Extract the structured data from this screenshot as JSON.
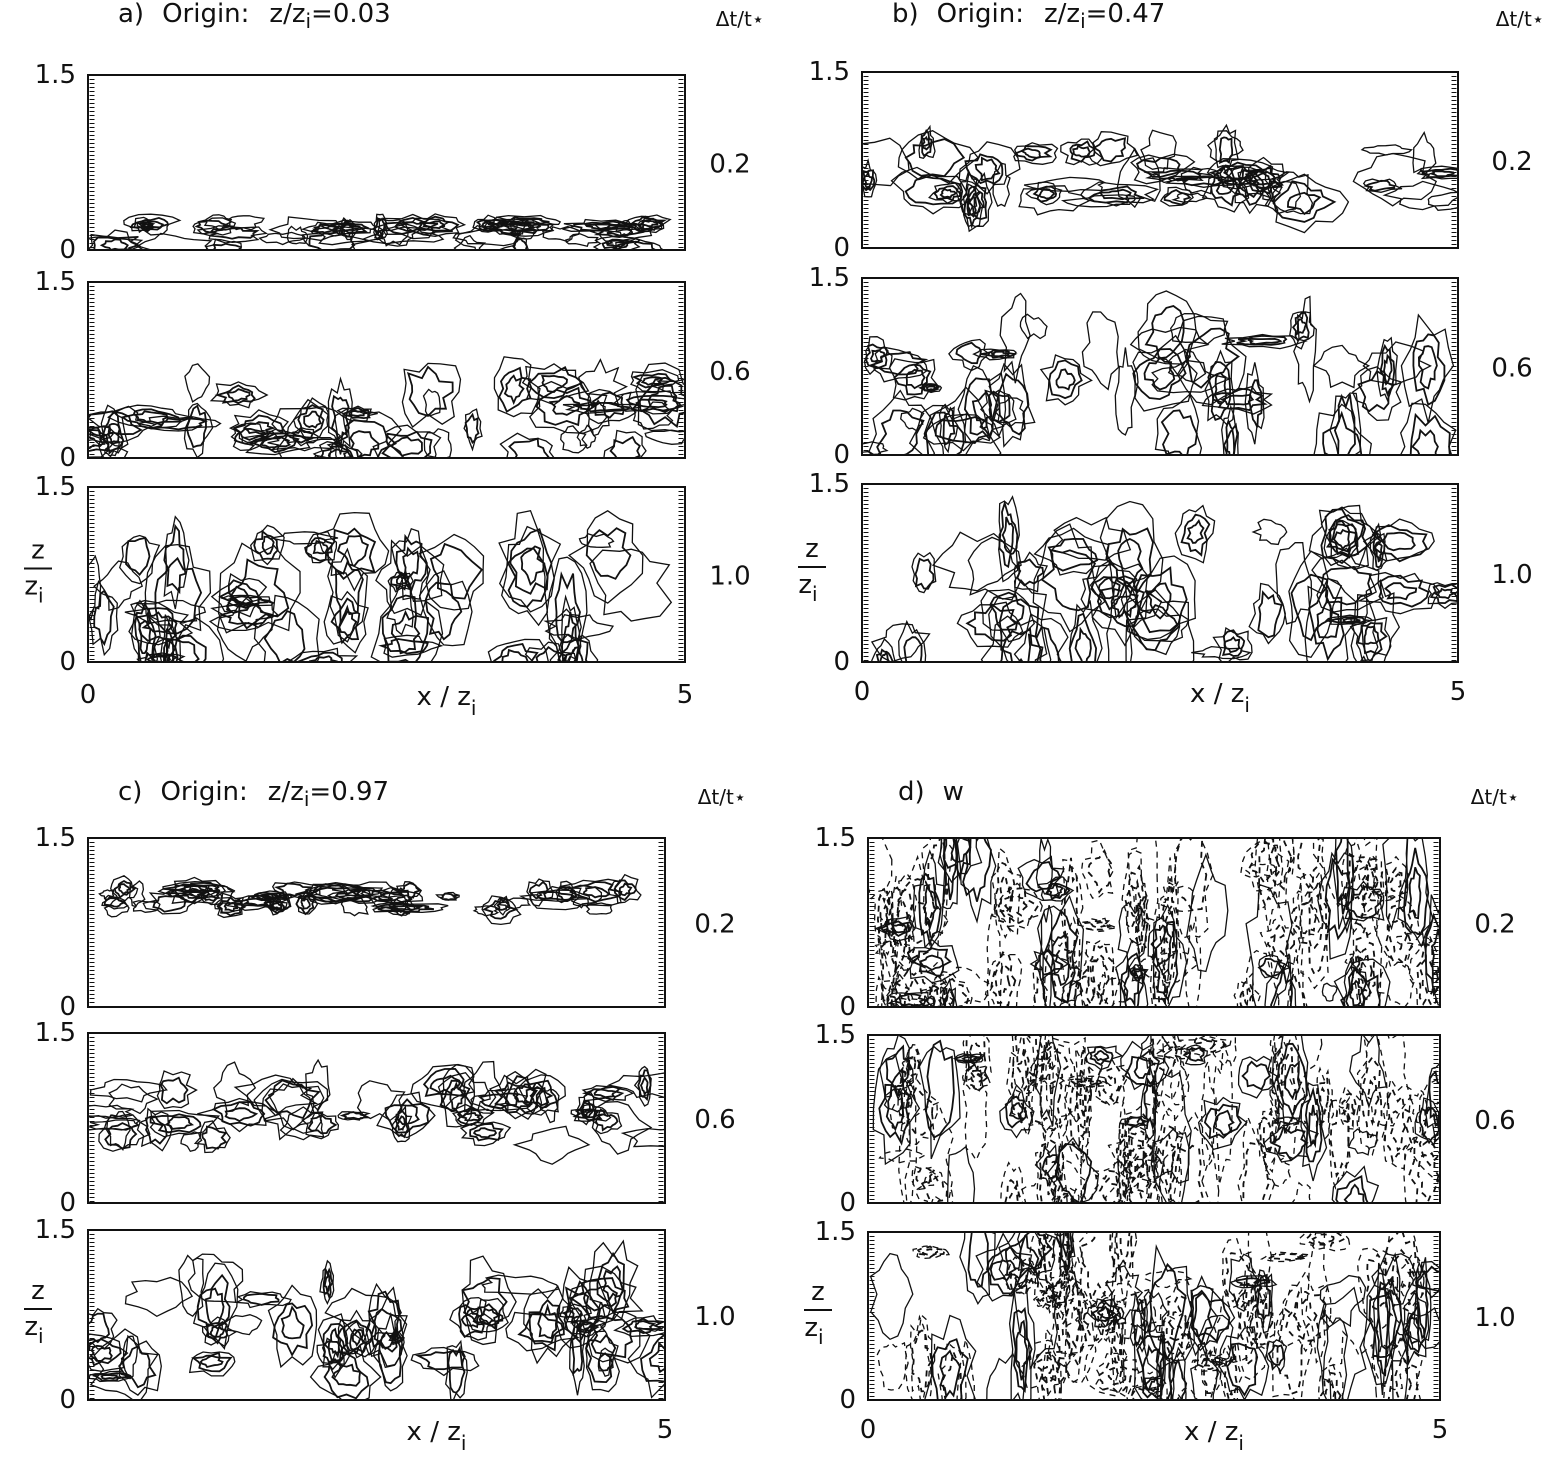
{
  "panels": [
    {
      "label": "a)",
      "title": "Origin:",
      "origin": [
        "z/z",
        "i",
        "=0.03"
      ],
      "time_header": "Δt/t⋆",
      "rows": [
        {
          "y_top": "1.5",
          "y_bottom": "0",
          "time": "0.2"
        },
        {
          "y_top": "1.5",
          "y_bottom": "0",
          "time": "0.6"
        },
        {
          "y_top": "1.5",
          "y_bottom": "0",
          "time": "1.0"
        }
      ],
      "x_ticks": [
        "0",
        "5"
      ],
      "x_label": [
        "x / z",
        "i"
      ],
      "y_label": [
        "z",
        "z",
        "i"
      ]
    },
    {
      "label": "b)",
      "title": "Origin:",
      "origin": [
        "z/z",
        "i",
        "=0.47"
      ],
      "time_header": "Δt/t⋆",
      "rows": [
        {
          "y_top": "1.5",
          "y_bottom": "0",
          "time": "0.2"
        },
        {
          "y_top": "1.5",
          "y_bottom": "0",
          "time": "0.6"
        },
        {
          "y_top": "1.5",
          "y_bottom": "0",
          "time": "1.0"
        }
      ],
      "x_ticks": [
        "0",
        "5"
      ],
      "x_label": [
        "x / z",
        "i"
      ],
      "y_label": [
        "z",
        "z",
        "i"
      ]
    },
    {
      "label": "c)",
      "title": "Origin:",
      "origin": [
        "z/z",
        "i",
        "=0.97"
      ],
      "time_header": "Δt/t⋆",
      "rows": [
        {
          "y_top": "1.5",
          "y_bottom": "0",
          "time": "0.2"
        },
        {
          "y_top": "1.5",
          "y_bottom": "0",
          "time": "0.6"
        },
        {
          "y_top": "1.5",
          "y_bottom": "0",
          "time": "1.0"
        }
      ],
      "x_ticks": [
        null,
        "5"
      ],
      "x_label": [
        "x / z",
        "i"
      ],
      "y_label": [
        "z",
        "z",
        "i"
      ]
    },
    {
      "label": "d)",
      "title": "w",
      "origin": null,
      "time_header": "Δt/t⋆",
      "rows": [
        {
          "y_top": "1.5",
          "y_bottom": "0",
          "time": "0.2"
        },
        {
          "y_top": "1.5",
          "y_bottom": "0",
          "time": "0.6"
        },
        {
          "y_top": "1.5",
          "y_bottom": "0",
          "time": "1.0"
        }
      ],
      "x_ticks": [
        "0",
        "5"
      ],
      "x_label": [
        "x / z",
        "i"
      ],
      "y_label": [
        "z",
        "z",
        "i"
      ]
    }
  ]
}
